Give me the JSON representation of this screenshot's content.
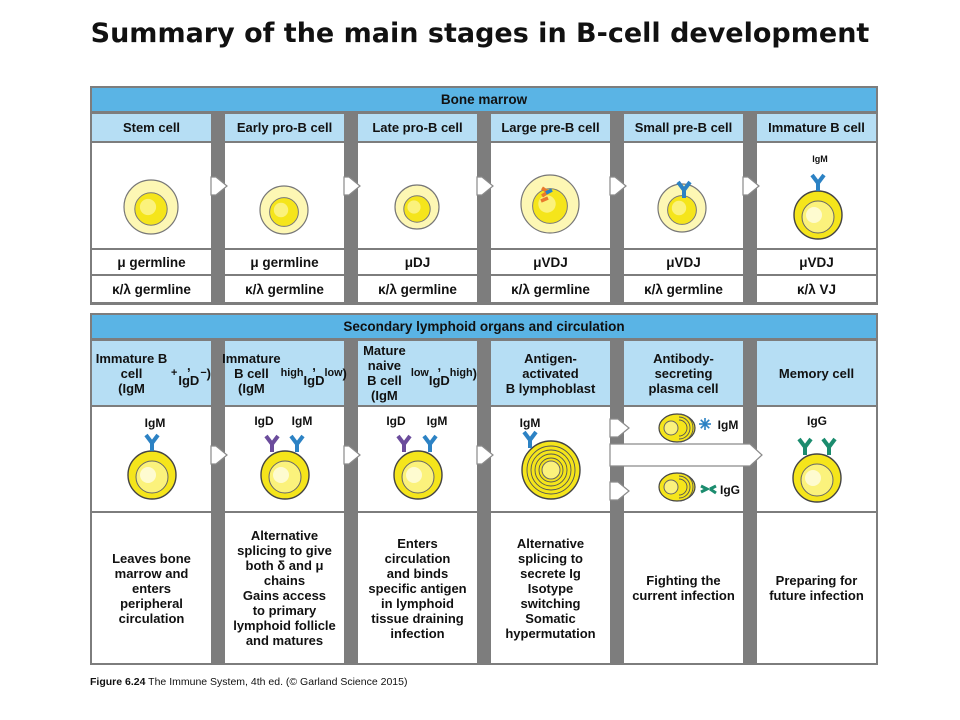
{
  "title": "Summary of the main stages in B-cell development",
  "bone_marrow": {
    "header": "Bone marrow",
    "columns": [
      {
        "name": "Stem cell",
        "heavy": "μ germline",
        "light": "κ/λ germline"
      },
      {
        "name": "Early pro-B cell",
        "heavy": "μ germline",
        "light": "κ/λ germline"
      },
      {
        "name": "Late pro-B cell",
        "heavy": "μDJ",
        "light": "κ/λ germline"
      },
      {
        "name": "Large pre-B cell",
        "heavy": "μVDJ",
        "light": "κ/λ germline"
      },
      {
        "name": "Small pre-B cell",
        "heavy": "μVDJ",
        "light": "κ/λ germline"
      },
      {
        "name": "Immature B cell",
        "heavy": "μVDJ",
        "light": "κ/λ VJ"
      }
    ],
    "receptor_labels": {
      "immature": "IgM"
    }
  },
  "secondary": {
    "header": "Secondary lymphoid organs and circulation",
    "columns": [
      {
        "name_html": "Immature B cell<br>(IgM<sup>+</sup>, IgD<sup>−</sup>)",
        "desc_html": "Leaves bone<br>marrow and<br>enters<br>peripheral<br>circulation"
      },
      {
        "name_html": "Immature B cell<br>(IgM<sup>high</sup>, IgD<sup>low</sup>)",
        "desc_html": "Alternative<br>splicing to give<br>both δ and μ<br>chains<br>Gains access<br>to primary<br>lymphoid follicle<br>and matures"
      },
      {
        "name_html": "Mature naive<br>B cell<br>(IgM<sup>low</sup>, IgD<sup>high</sup>)",
        "desc_html": "Enters<br>circulation<br>and binds<br>specific antigen<br>in lymphoid<br>tissue draining<br>infection"
      },
      {
        "name_html": "Antigen-<br>activated<br>B lymphoblast",
        "desc_html": "Alternative<br>splicing to<br>secrete Ig<br>Isotype<br>switching<br>Somatic<br>hypermutation"
      },
      {
        "name_html": "Antibody-<br>secreting<br>plasma cell",
        "desc_html": "Fighting the<br>current infection"
      },
      {
        "name_html": "Memory cell",
        "desc_html": "Preparing for<br>future infection"
      }
    ],
    "receptor_labels": {
      "igm": "IgM",
      "igd": "IgD",
      "igg": "IgG"
    }
  },
  "caption": {
    "bold": "Figure 6.24",
    "text": " The Immune System, 4th ed. (© Garland Science 2015)"
  },
  "colors": {
    "header_blue": "#5ab4e5",
    "column_blue": "#b6def4",
    "border_gray": "#7d7d7d",
    "cell_yellow": "#f5e51b",
    "cytoplasm_yellow": "#fdf7b4",
    "igm_blue": "#2c82c4",
    "igd_purple": "#6b4c9c",
    "igg_green": "#1b8c6e",
    "pre_bcr_orange": "#e87a2c"
  }
}
